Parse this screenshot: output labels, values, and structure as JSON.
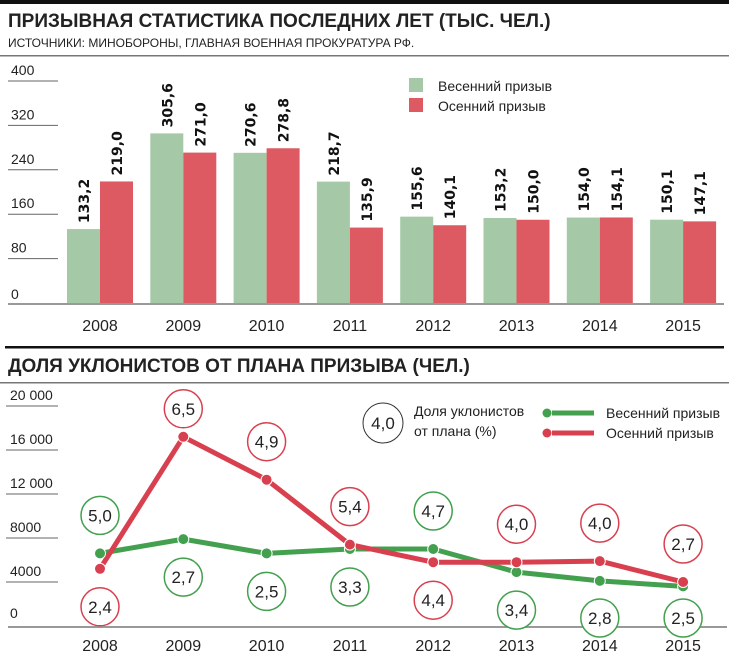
{
  "colors": {
    "spring_bar": "#a5c9a7",
    "autumn_bar": "#dd5a62",
    "spring_line": "#43a04e",
    "autumn_line": "#d8404f"
  },
  "chart_data": [
    {
      "type": "bar",
      "title": "ПРИЗЫВНАЯ СТАТИСТИКА ПОСЛЕДНИХ ЛЕТ (ТЫС. ЧЕЛ.)",
      "subtitle": "ИСТОЧНИКИ: МИНОБОРОНЫ, ГЛАВНАЯ ВОЕННАЯ ПРОКУРАТУРА РФ.",
      "categories": [
        "2008",
        "2009",
        "2010",
        "2011",
        "2012",
        "2013",
        "2014",
        "2015"
      ],
      "ylim": [
        0,
        400
      ],
      "yticks": [
        "0",
        "80",
        "160",
        "240",
        "320",
        "400"
      ],
      "legend_position": "top-right",
      "series": [
        {
          "name": "Весенний призыв",
          "values": [
            133.2,
            305.6,
            270.6,
            218.7,
            155.6,
            153.2,
            154.0,
            150.1
          ],
          "labels": [
            "133,2",
            "305,6",
            "270,6",
            "218,7",
            "155,6",
            "153,2",
            "154,0",
            "150,1"
          ]
        },
        {
          "name": "Осенний призыв",
          "values": [
            219.0,
            271.0,
            278.8,
            135.9,
            140.1,
            150.0,
            154.1,
            147.1
          ],
          "labels": [
            "219,0",
            "271,0",
            "278,8",
            "135,9",
            "140,1",
            "150,0",
            "154,1",
            "147,1"
          ]
        }
      ]
    },
    {
      "type": "line",
      "title": "ДОЛЯ УКЛОНИСТОВ ОТ ПЛАНА ПРИЗЫВА (ЧЕЛ.)",
      "categories": [
        "2008",
        "2009",
        "2010",
        "2011",
        "2012",
        "2013",
        "2014",
        "2015"
      ],
      "ylim": [
        0,
        20000
      ],
      "yticks": [
        "0",
        "4000",
        "8000",
        "12 000",
        "16 000",
        "20 000"
      ],
      "legend_position": "top-right",
      "legend_note": {
        "sample": "4,0",
        "text1": "Доля уклонистов",
        "text2": "от плана (%)"
      },
      "series": [
        {
          "name": "Весенний призыв",
          "values": [
            6600,
            7900,
            6600,
            7000,
            7000,
            4900,
            4100,
            3600
          ],
          "percent": [
            "5,0",
            "2,7",
            "2,5",
            "3,3",
            "4,7",
            "3,4",
            "2,8",
            "2,5"
          ],
          "percent_above": [
            true,
            false,
            false,
            false,
            true,
            false,
            false,
            false
          ]
        },
        {
          "name": "Осенний призыв",
          "values": [
            5200,
            17200,
            13300,
            7400,
            5800,
            5800,
            5900,
            4000
          ],
          "percent": [
            "2,4",
            "6,5",
            "4,9",
            "5,4",
            "4,4",
            "4,0",
            "4,0",
            "2,7"
          ],
          "percent_above": [
            false,
            true,
            true,
            true,
            false,
            true,
            true,
            true
          ]
        }
      ]
    }
  ]
}
